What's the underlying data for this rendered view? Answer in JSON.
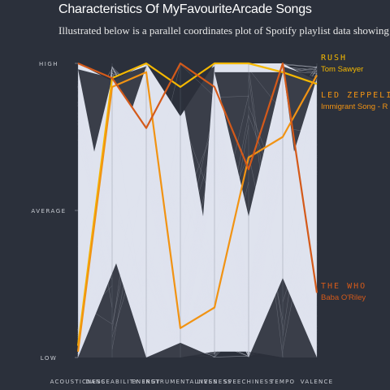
{
  "title": "Characteristics Of MyFavouriteArcade Songs",
  "subtitle": "Illustrated below is a parallel coordinates plot of Spotify playlist data showing",
  "colors": {
    "background": "#2b303b",
    "background_lines": "#dfe3ee",
    "dark_lines": "#2b303b",
    "highlight": [
      "#d45a1a",
      "#f5b800",
      "#f19313"
    ]
  },
  "chart_data": {
    "type": "parallel-coordinates",
    "axes": [
      "ACOUSTICNESS",
      "DANCEABILITY",
      "ENERGY",
      "INSTRUMENTALNESS",
      "LIVENESS",
      "SPEECHINESS",
      "TEMPO",
      "VALENCE"
    ],
    "y_tick_labels": [
      "HIGH",
      "AVERAGE",
      "LOW"
    ],
    "y_range": [
      0,
      1
    ],
    "grid": false,
    "legend_placement": "right (inline labels)",
    "highlighted_series": [
      {
        "artist": "RUSH",
        "song": "Tom Sawyer",
        "color": "#f5b800",
        "values": [
          0.04,
          0.95,
          1.0,
          0.92,
          1.0,
          1.0,
          0.97,
          0.93
        ]
      },
      {
        "artist": "LED ZEPPELI",
        "song": "Immigrant Song - R",
        "color": "#f19313",
        "values": [
          0.02,
          0.92,
          0.97,
          0.1,
          0.17,
          0.68,
          0.75,
          0.96
        ]
      },
      {
        "artist": "THE WHO",
        "song": "Baba O'Riley",
        "color": "#d45a1a",
        "values": [
          1.0,
          0.95,
          0.78,
          1.0,
          0.92,
          0.64,
          1.0,
          0.22
        ]
      }
    ],
    "background_series_count": 170
  }
}
